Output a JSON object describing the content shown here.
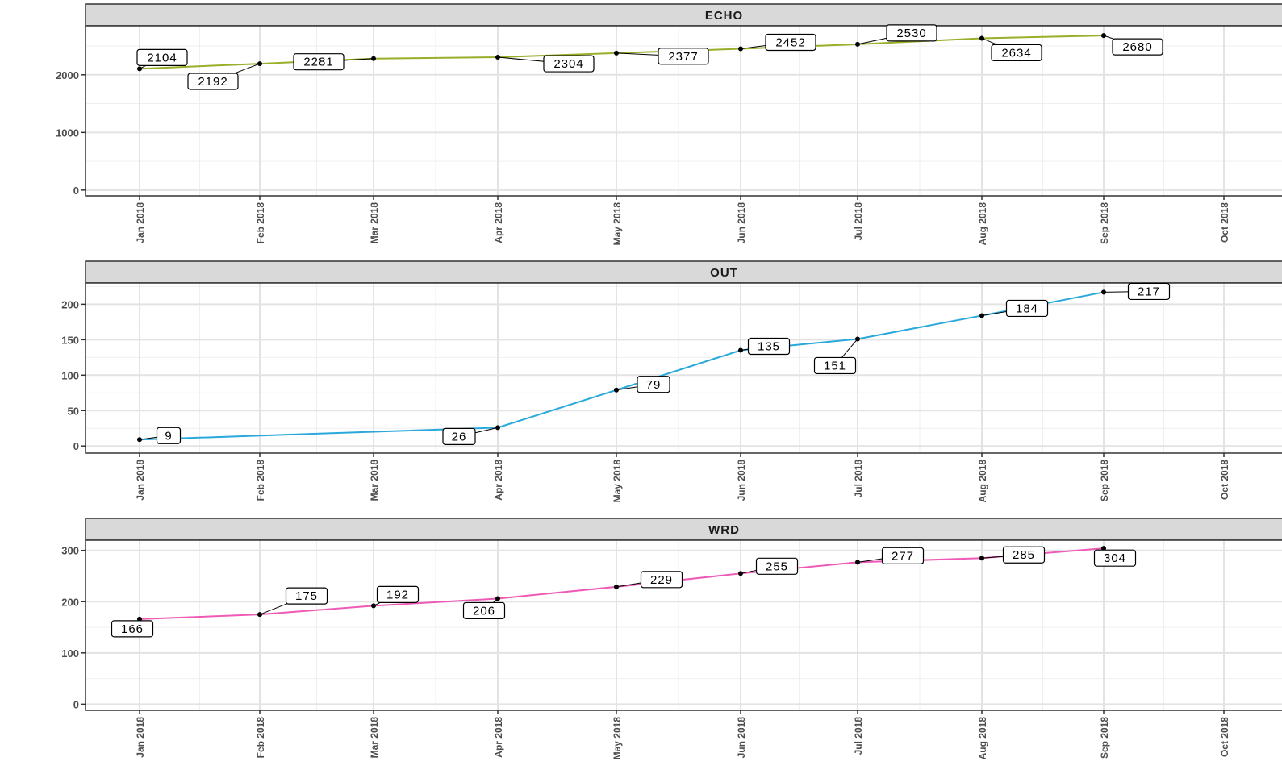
{
  "chart_data": [
    {
      "type": "line",
      "facet": "ECHO",
      "color": "#9aae2a",
      "x": [
        "Jan 2018",
        "Feb 2018",
        "Mar 2018",
        "Apr 2018",
        "May 2018",
        "Jun 2018",
        "Jul 2018",
        "Aug 2018",
        "Sep 2018"
      ],
      "values": [
        2104,
        2192,
        2281,
        2304,
        2377,
        2452,
        2530,
        2634,
        2680
      ],
      "x_ticks": [
        "Jan 2018",
        "Feb 2018",
        "Mar 2018",
        "Apr 2018",
        "May 2018",
        "Jun 2018",
        "Jul 2018",
        "Aug 2018",
        "Sep 2018",
        "Oct 2018"
      ],
      "y_ticks": [
        "0",
        "1000",
        "2000"
      ],
      "y_tick_values": [
        0,
        1000,
        2000
      ],
      "ylim": [
        -100,
        2850
      ],
      "grid": true
    },
    {
      "type": "line",
      "facet": "OUT",
      "color": "#29a9db",
      "x": [
        "Jan 2018",
        "Apr 2018",
        "May 2018",
        "Jun 2018",
        "Jul 2018",
        "Aug 2018",
        "Sep 2018"
      ],
      "values": [
        9,
        26,
        79,
        135,
        151,
        184,
        217
      ],
      "x_ticks": [
        "Jan 2018",
        "Feb 2018",
        "Mar 2018",
        "Apr 2018",
        "May 2018",
        "Jun 2018",
        "Jul 2018",
        "Aug 2018",
        "Sep 2018",
        "Oct 2018"
      ],
      "y_ticks": [
        "0",
        "50",
        "100",
        "150",
        "200"
      ],
      "y_tick_values": [
        0,
        50,
        100,
        150,
        200
      ],
      "ylim": [
        -10,
        230
      ],
      "grid": true
    },
    {
      "type": "line",
      "facet": "WRD",
      "color": "#ee5bb6",
      "x": [
        "Jan 2018",
        "Feb 2018",
        "Mar 2018",
        "Apr 2018",
        "May 2018",
        "Jun 2018",
        "Jul 2018",
        "Aug 2018",
        "Sep 2018"
      ],
      "values": [
        166,
        175,
        192,
        206,
        229,
        255,
        277,
        285,
        304
      ],
      "x_ticks": [
        "Jan 2018",
        "Feb 2018",
        "Mar 2018",
        "Apr 2018",
        "May 2018",
        "Jun 2018",
        "Jul 2018",
        "Aug 2018",
        "Sep 2018",
        "Oct 2018"
      ],
      "y_ticks": [
        "0",
        "100",
        "200",
        "300"
      ],
      "y_tick_values": [
        0,
        100,
        200,
        300
      ],
      "ylim": [
        -12,
        320
      ],
      "grid": true
    }
  ]
}
